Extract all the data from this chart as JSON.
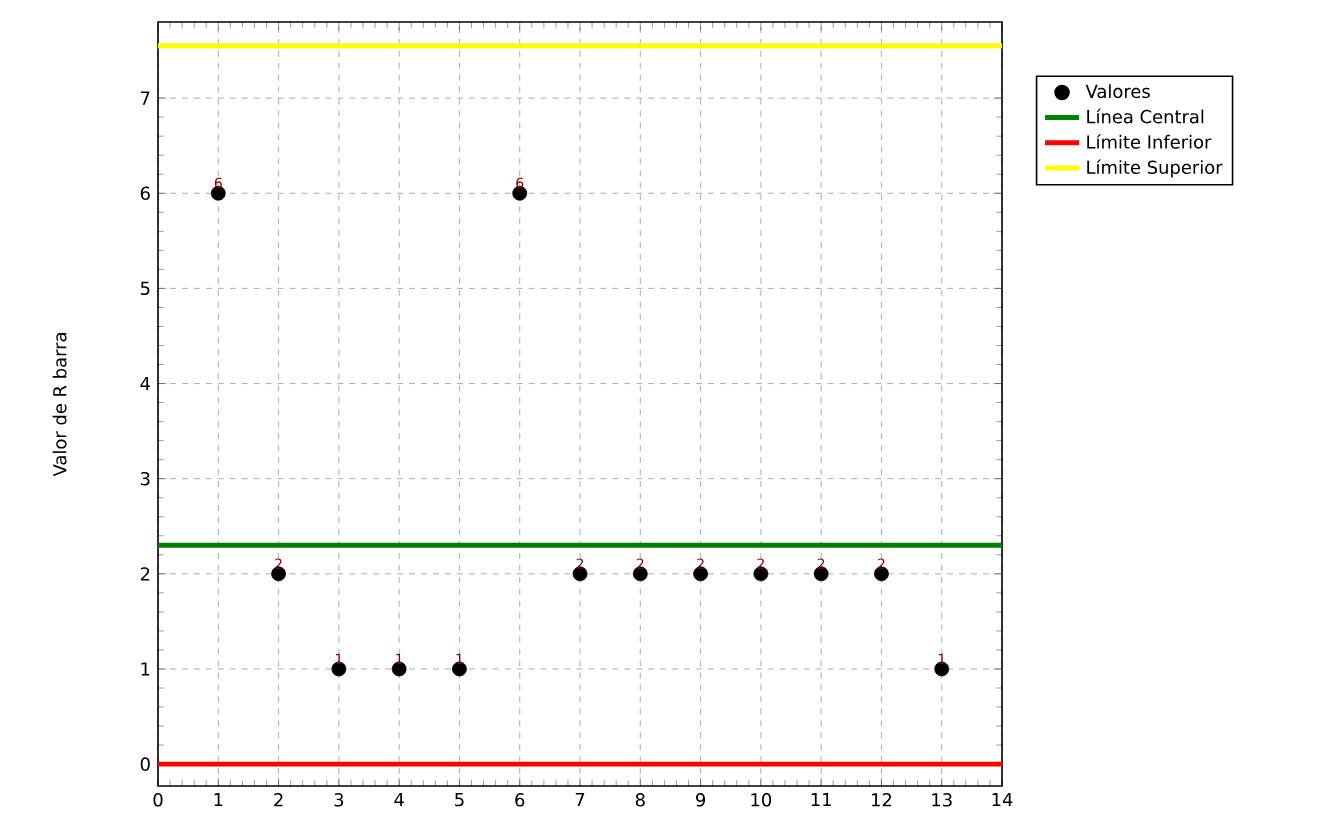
{
  "chart_data": {
    "type": "scatter",
    "ylabel": "Valor de R barra",
    "xlim": [
      0,
      14
    ],
    "ylim": [
      -0.23,
      7.8
    ],
    "xticks": [
      0,
      1,
      2,
      3,
      4,
      5,
      6,
      7,
      8,
      9,
      10,
      11,
      12,
      13,
      14
    ],
    "yticks": [
      0,
      1,
      2,
      3,
      4,
      5,
      6,
      7
    ],
    "grid": true,
    "legend": "top right",
    "series": [
      {
        "name": "Valores",
        "color": "#000000",
        "marker": "circle",
        "x": [
          1,
          2,
          3,
          4,
          5,
          6,
          7,
          8,
          9,
          10,
          11,
          12,
          13
        ],
        "values": [
          6,
          2,
          1,
          1,
          1,
          6,
          2,
          2,
          2,
          2,
          2,
          2,
          1
        ],
        "value_labels": [
          "6",
          "2",
          "1",
          "1",
          "1",
          "6",
          "2",
          "2",
          "2",
          "2",
          "2",
          "2",
          "1"
        ]
      },
      {
        "name": "Línea Central",
        "type": "line",
        "marker": "none",
        "color": "#008000",
        "x": [
          0,
          14
        ],
        "values": [
          2.3,
          2.3
        ]
      },
      {
        "name": "Límite Inferior",
        "type": "line",
        "marker": "none",
        "color": "#ff0000",
        "x": [
          0,
          14
        ],
        "values": [
          0,
          0
        ]
      },
      {
        "name": "Límite Superior",
        "type": "line",
        "marker": "none",
        "color": "#ffff00",
        "x": [
          0,
          14
        ],
        "values": [
          7.55,
          7.55
        ]
      }
    ]
  }
}
